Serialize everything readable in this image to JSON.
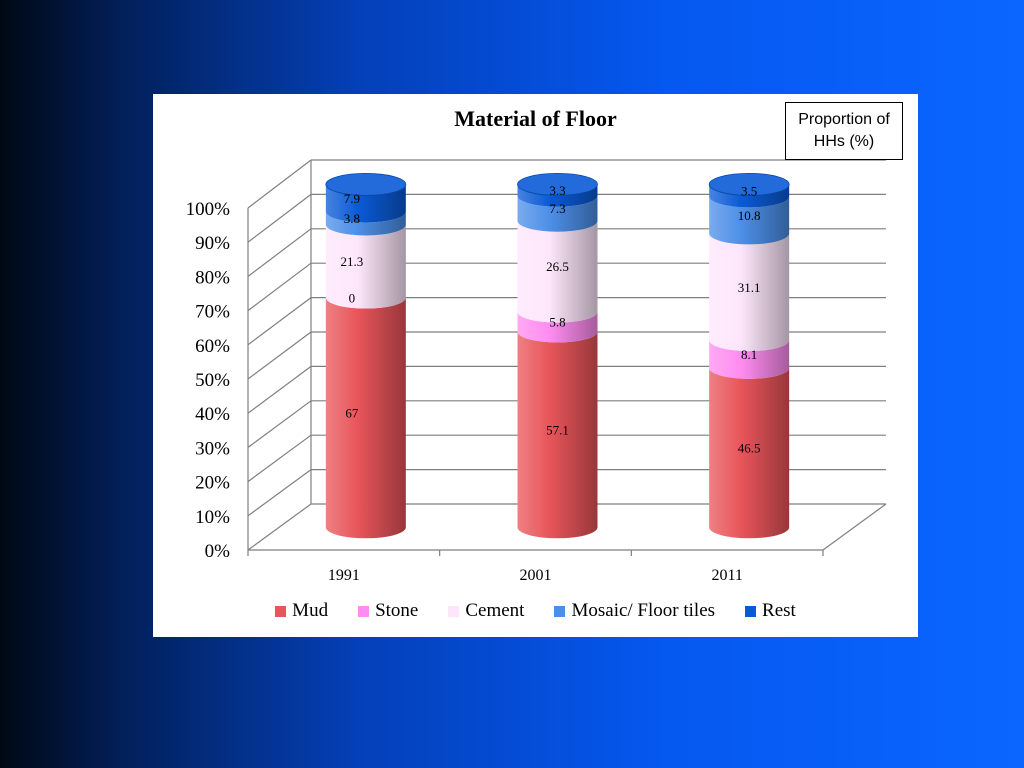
{
  "chart_data": {
    "type": "bar",
    "stacked": true,
    "style": "3d-cylinder",
    "title": "Material of Floor",
    "annotation": "Proportion of HHs (%)",
    "categories": [
      "1991",
      "2001",
      "2011"
    ],
    "series": [
      {
        "name": "Mud",
        "color": "#e8555a",
        "values": [
          67,
          57.1,
          46.5
        ]
      },
      {
        "name": "Stone",
        "color": "#ff8cf0",
        "values": [
          0,
          5.8,
          8.1
        ]
      },
      {
        "name": "Cement",
        "color": "#fde6fb",
        "values": [
          21.3,
          26.5,
          31.1
        ]
      },
      {
        "name": "Mosaic/ Floor tiles",
        "color": "#4d8fe8",
        "values": [
          3.8,
          7.3,
          10.8
        ]
      },
      {
        "name": "Rest",
        "color": "#0a5ad6",
        "values": [
          7.9,
          3.3,
          3.5
        ]
      }
    ],
    "y_ticks": [
      "0%",
      "10%",
      "20%",
      "30%",
      "40%",
      "50%",
      "60%",
      "70%",
      "80%",
      "90%",
      "100%"
    ],
    "ylim": [
      0,
      100
    ],
    "grid": true,
    "legend_position": "bottom"
  }
}
